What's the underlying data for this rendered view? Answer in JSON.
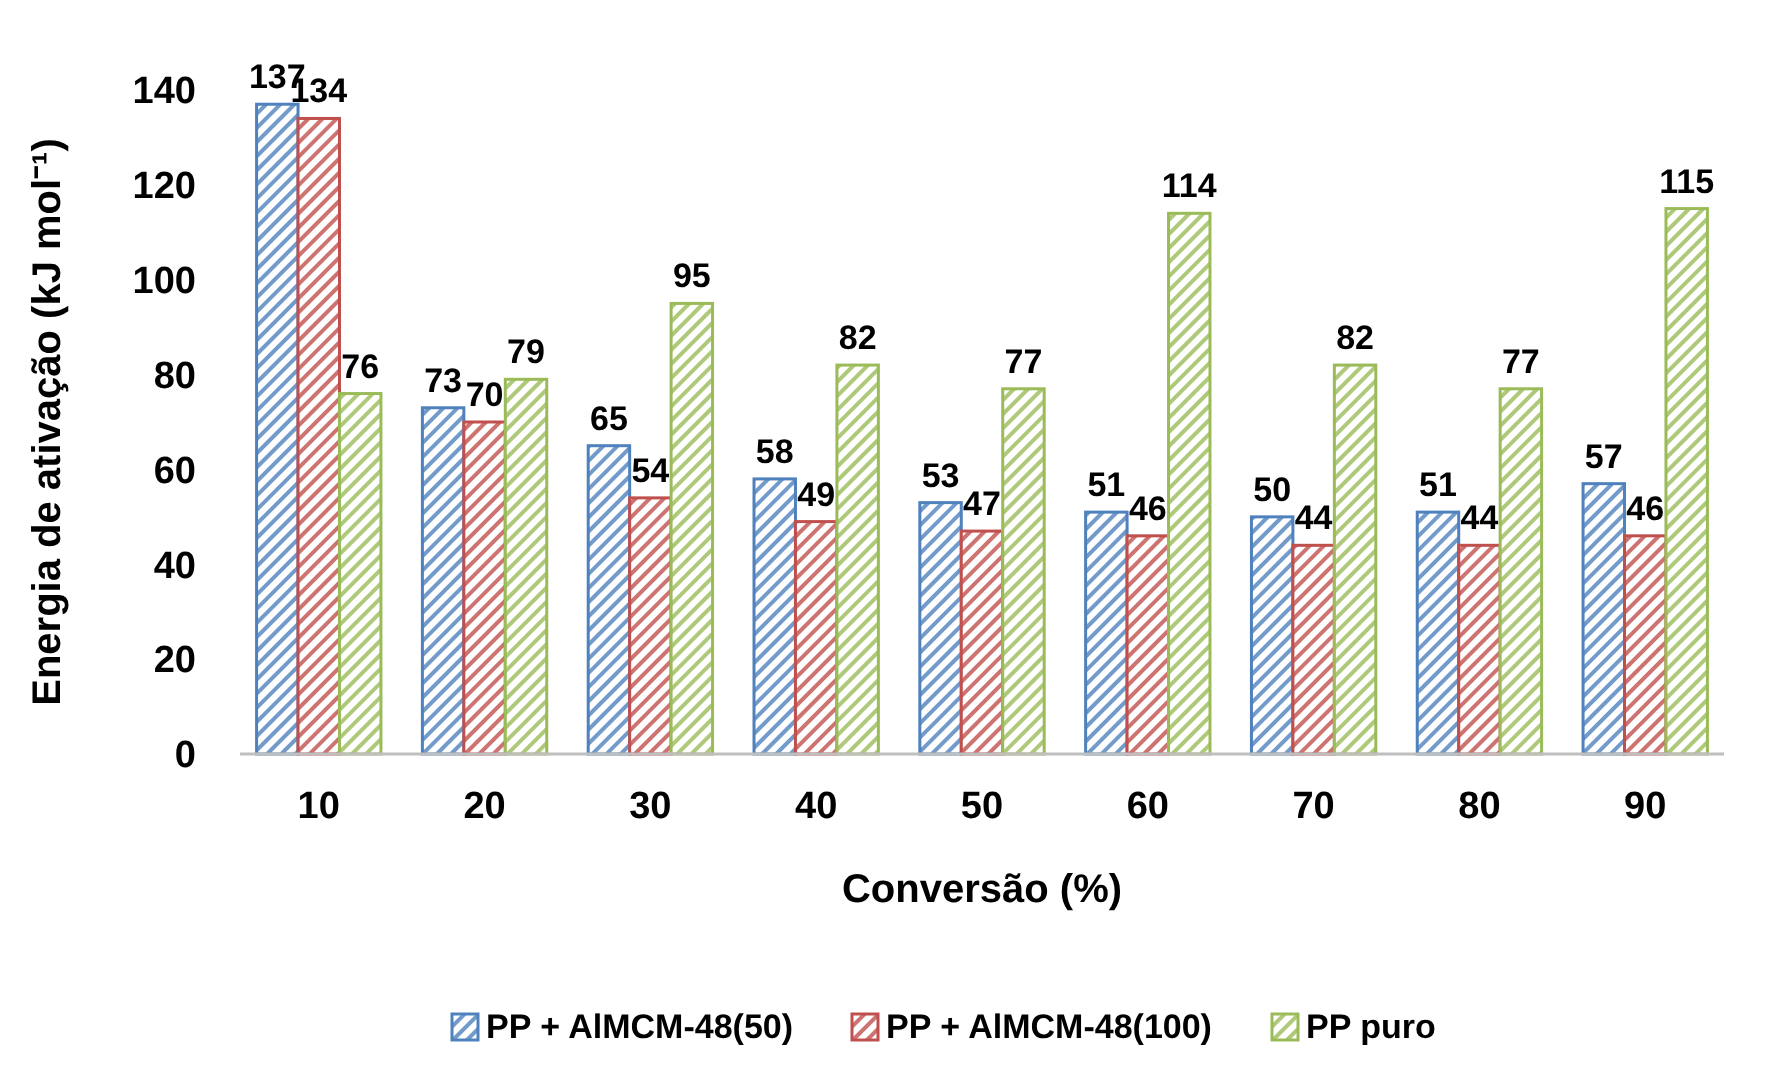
{
  "chart_data": {
    "type": "bar",
    "xlabel": "Conversão (%)",
    "ylabel": "Energia de ativação (kJ mol⁻¹)",
    "categories": [
      "10",
      "20",
      "30",
      "40",
      "50",
      "60",
      "70",
      "80",
      "90"
    ],
    "series": [
      {
        "name": "PP + AlMCM-48(50)",
        "color": "#4f81bd",
        "values": [
          137,
          73,
          65,
          58,
          53,
          51,
          50,
          51,
          57
        ]
      },
      {
        "name": "PP + AlMCM-48(100)",
        "color": "#c0504d",
        "values": [
          134,
          70,
          54,
          49,
          47,
          46,
          44,
          44,
          46
        ]
      },
      {
        "name": "PP puro",
        "color": "#9bbb59",
        "values": [
          76,
          79,
          95,
          82,
          77,
          114,
          82,
          77,
          115
        ]
      }
    ],
    "ylim": [
      0,
      140
    ],
    "yticks": [
      0,
      20,
      40,
      60,
      80,
      100,
      120,
      140
    ],
    "data_labels": true,
    "legend": "bottom",
    "grid": false
  }
}
